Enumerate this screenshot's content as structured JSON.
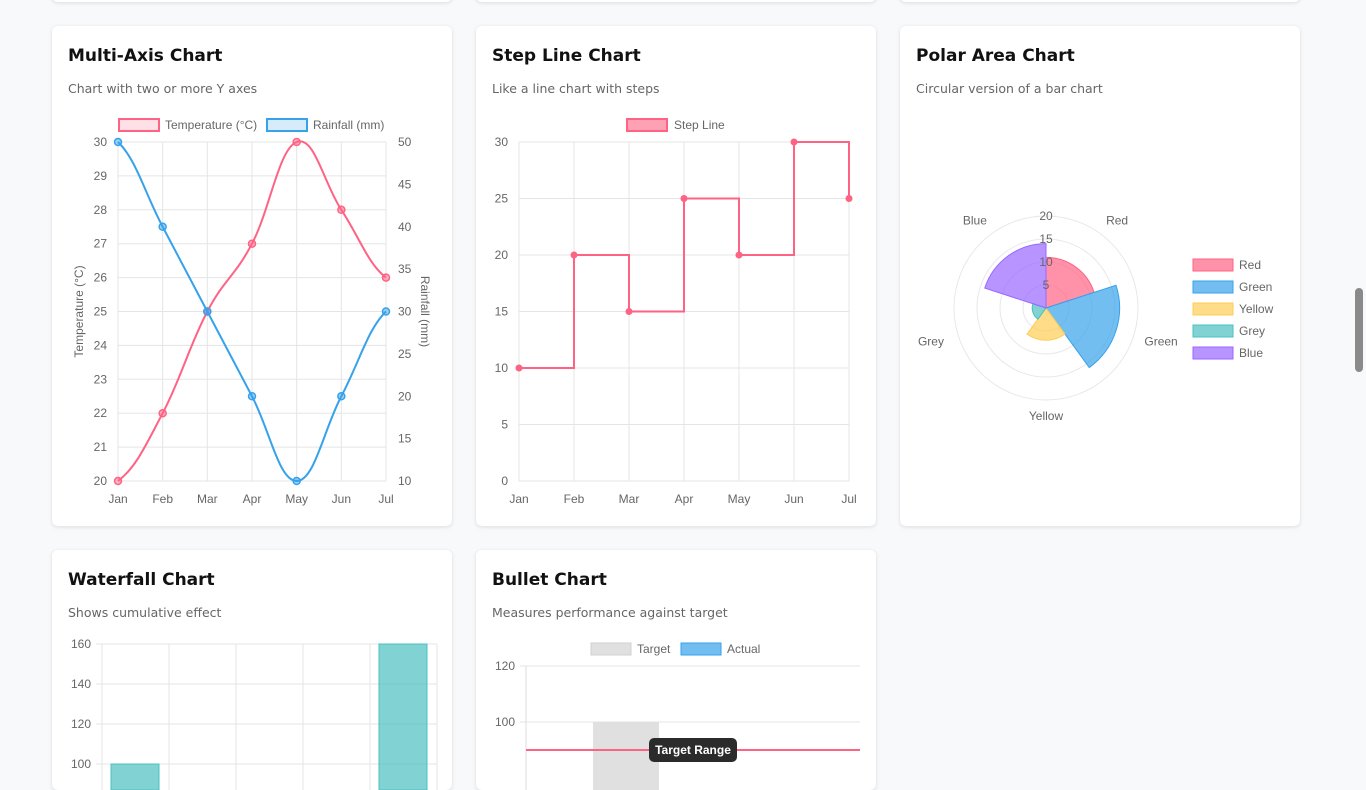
{
  "cards": [
    {
      "title": "Multi-Axis Chart",
      "subtitle": "Chart with two or more Y axes"
    },
    {
      "title": "Step Line Chart",
      "subtitle": "Like a line chart with steps"
    },
    {
      "title": "Polar Area Chart",
      "subtitle": "Circular version of a bar chart"
    },
    {
      "title": "Waterfall Chart",
      "subtitle": "Shows cumulative effect"
    },
    {
      "title": "Bullet Chart",
      "subtitle": "Measures performance against target"
    }
  ],
  "chart_data": [
    {
      "type": "line",
      "categories": [
        "Jan",
        "Feb",
        "Mar",
        "Apr",
        "May",
        "Jun",
        "Jul"
      ],
      "series": [
        {
          "name": "Temperature (°C)",
          "values": [
            20,
            22,
            25,
            27,
            30,
            28,
            26
          ],
          "color": "#ff6384",
          "axis": "left"
        },
        {
          "name": "Rainfall (mm)",
          "values": [
            50,
            40,
            30,
            20,
            10,
            20,
            30
          ],
          "color": "#36a2eb",
          "axis": "right"
        }
      ],
      "ylabel": "Temperature (°C)",
      "y2label": "Rainfall (mm)",
      "ylim": [
        20,
        30
      ],
      "y2lim": [
        10,
        50
      ],
      "yticks": [
        20,
        21,
        22,
        23,
        24,
        25,
        26,
        27,
        28,
        29,
        30
      ],
      "y2ticks": [
        10,
        15,
        20,
        25,
        30,
        35,
        40,
        45,
        50
      ],
      "legend": "top",
      "grid": true
    },
    {
      "type": "line",
      "stepped": true,
      "categories": [
        "Jan",
        "Feb",
        "Mar",
        "Apr",
        "May",
        "Jun",
        "Jul"
      ],
      "series": [
        {
          "name": "Step Line",
          "values": [
            10,
            20,
            15,
            25,
            20,
            30,
            25
          ],
          "color": "#ff6384"
        }
      ],
      "ylim": [
        0,
        30
      ],
      "yticks": [
        0,
        5,
        10,
        15,
        20,
        25,
        30
      ],
      "legend": "top",
      "grid": true
    },
    {
      "type": "polarArea",
      "labels": [
        "Red",
        "Green",
        "Yellow",
        "Grey",
        "Blue"
      ],
      "values": [
        11,
        16,
        7,
        3,
        14
      ],
      "colors": [
        "#ff6384",
        "#36a2eb",
        "#ffcd56",
        "#4bc0c0",
        "#9966ff"
      ],
      "rticks": [
        5,
        10,
        15,
        20
      ],
      "legend": "right"
    },
    {
      "type": "bar",
      "visible_values": [
        100,
        null,
        null,
        null,
        160
      ],
      "ylim": [
        100,
        160
      ],
      "yticks": [
        100,
        120,
        140,
        160
      ],
      "color": "#4bc0c0",
      "grid": true
    },
    {
      "type": "bar",
      "series": [
        {
          "name": "Target",
          "values": [
            100
          ],
          "color": "#e0e0e0"
        },
        {
          "name": "Actual",
          "color": "#36a2eb"
        }
      ],
      "ylim": [
        90,
        120
      ],
      "yticks": [
        100,
        120
      ],
      "annotation": {
        "label": "Target Range",
        "value": 90,
        "color": "#ff6384"
      },
      "legend": "top"
    }
  ]
}
